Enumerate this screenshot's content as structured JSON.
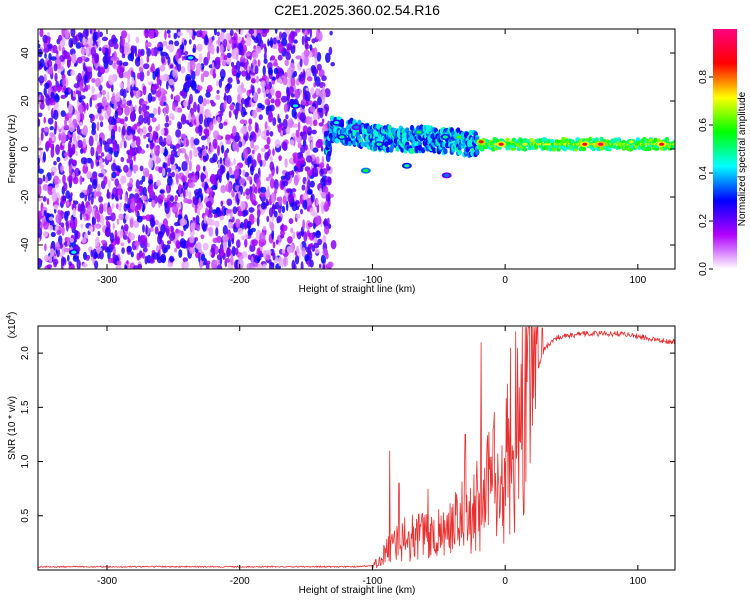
{
  "title": "C2E1.2025.360.02.54.R16",
  "chart_data": [
    {
      "type": "heatmap",
      "xlabel": "Height of straight line (km)",
      "ylabel": "Frequency (Hz)",
      "xlim": [
        -352,
        128
      ],
      "ylim": [
        -50,
        50
      ],
      "x_ticks": [
        -300,
        -200,
        -100,
        0,
        100
      ],
      "x_tick_labels": [
        "-300",
        "-200",
        "-100",
        "0",
        "100"
      ],
      "y_ticks": [
        -40,
        -20,
        0,
        20,
        40
      ],
      "y_tick_labels": [
        "-40",
        "-20",
        "0",
        "20",
        "40"
      ],
      "grid": false,
      "colorbar": {
        "label": "Normalized spectral amplitude",
        "range": [
          0,
          1
        ],
        "ticks": [
          0,
          0.2,
          0.4,
          0.6,
          0.8
        ],
        "tick_labels": [
          "0.0",
          "0.2",
          "0.4",
          "0.6",
          "0.8"
        ],
        "colors": [
          "#ffffff",
          "#b000ff",
          "#0000ff",
          "#00ffff",
          "#00ff00",
          "#ffff00",
          "#ff0000",
          "#ff0080"
        ]
      },
      "ridge": {
        "center_frequency": [
          {
            "x": -132,
            "y": 8
          },
          {
            "x": -115,
            "y": 7
          },
          {
            "x": -100,
            "y": 5
          },
          {
            "x": -80,
            "y": 4
          },
          {
            "x": -60,
            "y": 4
          },
          {
            "x": -40,
            "y": 3
          },
          {
            "x": -20,
            "y": 2
          },
          {
            "x": 0,
            "y": 2
          },
          {
            "x": 50,
            "y": 2
          },
          {
            "x": 100,
            "y": 2
          },
          {
            "x": 128,
            "y": 2
          }
        ],
        "peak_points": [
          {
            "x": -127,
            "y": 11,
            "v": 0.45
          },
          {
            "x": -123,
            "y": 5,
            "v": 0.5
          },
          {
            "x": -112,
            "y": 9,
            "v": 0.35
          },
          {
            "x": -95,
            "y": 2,
            "v": 0.5
          },
          {
            "x": -74,
            "y": -7,
            "v": 0.5
          },
          {
            "x": -65,
            "y": 7,
            "v": 0.55
          },
          {
            "x": -45,
            "y": 5,
            "v": 0.5
          },
          {
            "x": -35,
            "y": 5,
            "v": 0.6
          },
          {
            "x": -18,
            "y": 3,
            "v": 0.85
          },
          {
            "x": -3,
            "y": 2,
            "v": 0.9
          },
          {
            "x": 15,
            "y": 2,
            "v": 0.7
          },
          {
            "x": 60,
            "y": 2,
            "v": 0.9
          },
          {
            "x": 72,
            "y": 2,
            "v": 0.95
          },
          {
            "x": 95,
            "y": 3,
            "v": 0.7
          },
          {
            "x": 118,
            "y": 2,
            "v": 0.9
          }
        ],
        "outliers": [
          {
            "x": -325,
            "y": -43,
            "v": 0.45
          },
          {
            "x": -237,
            "y": 38,
            "v": 0.45
          },
          {
            "x": -158,
            "y": 18,
            "v": 0.45
          },
          {
            "x": -105,
            "y": -9,
            "v": 0.55
          },
          {
            "x": -44,
            "y": -11,
            "v": 0.35
          }
        ]
      }
    },
    {
      "type": "line",
      "xlabel": "Height of straight line (km)",
      "ylabel": "SNR (10 * v/v)",
      "y_multiplier": "(x10",
      "y_multiplier_exp": "4",
      "xlim": [
        -352,
        128
      ],
      "ylim": [
        0,
        22500
      ],
      "x_ticks": [
        -300,
        -200,
        -100,
        0,
        100
      ],
      "x_tick_labels": [
        "-300",
        "-200",
        "-100",
        "0",
        "100"
      ],
      "y_ticks": [
        5000,
        10000,
        15000,
        20000
      ],
      "y_tick_labels": [
        "0.5",
        "1.0",
        "1.5",
        "2.0"
      ],
      "grid": false,
      "series": [
        {
          "color": "#e83030",
          "trend": [
            {
              "x": -352,
              "y": 300
            },
            {
              "x": -110,
              "y": 300
            },
            {
              "x": -100,
              "y": 400
            },
            {
              "x": -92,
              "y": 1200
            },
            {
              "x": -85,
              "y": 2500
            },
            {
              "x": -70,
              "y": 3000
            },
            {
              "x": -50,
              "y": 3500
            },
            {
              "x": -30,
              "y": 5000
            },
            {
              "x": -15,
              "y": 7000
            },
            {
              "x": 0,
              "y": 9500
            },
            {
              "x": 10,
              "y": 13000
            },
            {
              "x": 20,
              "y": 17000
            },
            {
              "x": 30,
              "y": 20500
            },
            {
              "x": 40,
              "y": 21500
            },
            {
              "x": 60,
              "y": 21800
            },
            {
              "x": 90,
              "y": 21800
            },
            {
              "x": 110,
              "y": 21300
            },
            {
              "x": 128,
              "y": 21000
            }
          ],
          "spikes": [
            {
              "x": -87,
              "y": 11000
            },
            {
              "x": -80,
              "y": 8000
            },
            {
              "x": -58,
              "y": 7500
            },
            {
              "x": -30,
              "y": 12500
            },
            {
              "x": -18,
              "y": 21000
            },
            {
              "x": 4,
              "y": 20500
            },
            {
              "x": 8,
              "y": 22000
            },
            {
              "x": 12,
              "y": 19000
            },
            {
              "x": 28,
              "y": 22300
            }
          ]
        }
      ]
    }
  ]
}
